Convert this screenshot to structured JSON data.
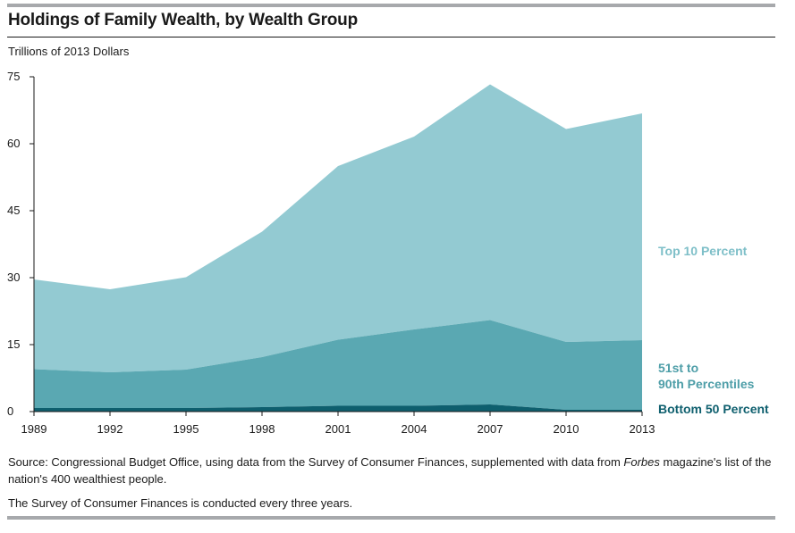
{
  "header": {
    "title": "Holdings of Family Wealth, by Wealth Group",
    "units": "Trillions of 2013 Dollars"
  },
  "footer": {
    "source_prefix": "Source: Congressional Budget Office, using data from the Survey of Consumer Finances, supplemented with data from ",
    "source_italic": "Forbes",
    "source_suffix": " magazine's list of the nation's 400 wealthiest people.",
    "note": "The Survey of Consumer Finances is conducted every three years."
  },
  "chart_data": {
    "type": "area",
    "stacked": true,
    "ylabel": "Trillions of 2013 Dollars",
    "ylim": [
      0,
      75
    ],
    "yticks": [
      0,
      15,
      30,
      45,
      60,
      75
    ],
    "categories": [
      "1989",
      "1992",
      "1995",
      "1998",
      "2001",
      "2004",
      "2007",
      "2010",
      "2013"
    ],
    "series": [
      {
        "name": "Bottom 50 Percent",
        "color": "#0e5f6e",
        "values": [
          0.8,
          0.8,
          0.8,
          1.0,
          1.3,
          1.3,
          1.6,
          0.4,
          0.4
        ]
      },
      {
        "name": "51st to 90th Percentiles",
        "color": "#5aa8b2",
        "values": [
          8.7,
          8.0,
          8.6,
          11.2,
          14.8,
          17.1,
          18.9,
          15.2,
          15.6
        ]
      },
      {
        "name": "Top 10 Percent",
        "color": "#93cad2",
        "values": [
          20.1,
          18.6,
          20.7,
          28.1,
          38.9,
          43.2,
          52.8,
          47.7,
          50.8
        ]
      }
    ],
    "series_label_colors": [
      "#0e5f6e",
      "#4e9ea8",
      "#7ebfc8"
    ],
    "legend": "right"
  }
}
